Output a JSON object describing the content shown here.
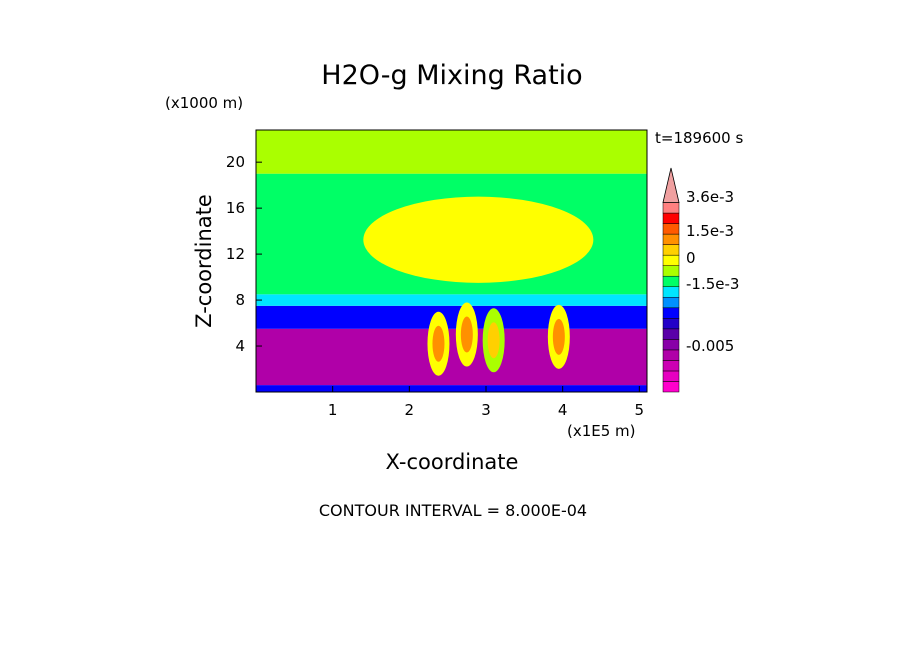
{
  "chart_data": {
    "type": "heatmap",
    "title": "H2O-g Mixing Ratio",
    "time_label": "t=189600 s",
    "xlabel": "X-coordinate",
    "ylabel": "Z-coordinate",
    "x_unit": "(x1E5 m)",
    "y_unit": "(x1000 m)",
    "x_ticks": [
      "1",
      "2",
      "3",
      "4",
      "5"
    ],
    "y_ticks": [
      "4",
      "8",
      "12",
      "16",
      "20"
    ],
    "xlim": [
      0,
      5.1
    ],
    "ylim": [
      0,
      22.8
    ],
    "footer": "CONTOUR INTERVAL = 8.000E-04",
    "colorbar": {
      "tick_labels": [
        "3.6e-3",
        "1.5e-3",
        "0",
        "-1.5e-3",
        "-0.005"
      ],
      "colors": [
        "#ff00cc",
        "#e600c0",
        "#cc00b3",
        "#b000a8",
        "#8800a8",
        "#5a00a8",
        "#2200c8",
        "#0000ff",
        "#0090ff",
        "#00e6ff",
        "#00ff66",
        "#aaff00",
        "#ffff00",
        "#ffd000",
        "#ff9000",
        "#ff5a00",
        "#ff0000",
        "#ff8080",
        "#f0a0a0"
      ]
    },
    "regions": [
      {
        "zmin": 0,
        "zmax": 0.6,
        "level": 7
      },
      {
        "zmin": 0.6,
        "zmax": 5.5,
        "level": 3
      },
      {
        "zmin": 5.5,
        "zmax": 7.5,
        "level": 7
      },
      {
        "zmin": 7.5,
        "zmax": 8.5,
        "level": 9
      },
      {
        "zmin": 8.5,
        "zmax": 19,
        "level": 10
      },
      {
        "zmin": 19,
        "zmax": 22.8,
        "level": 11
      }
    ],
    "plumes": [
      {
        "x": 2.38,
        "z": 4.2,
        "level": 14
      },
      {
        "x": 2.75,
        "z": 5.0,
        "level": 14
      },
      {
        "x": 3.1,
        "z": 4.5,
        "level": 13
      },
      {
        "x": 3.95,
        "z": 4.8,
        "level": 14
      }
    ],
    "bright_band": {
      "x0": 1.4,
      "x1": 4.4,
      "z0": 9.5,
      "z1": 17,
      "level": 12
    }
  }
}
